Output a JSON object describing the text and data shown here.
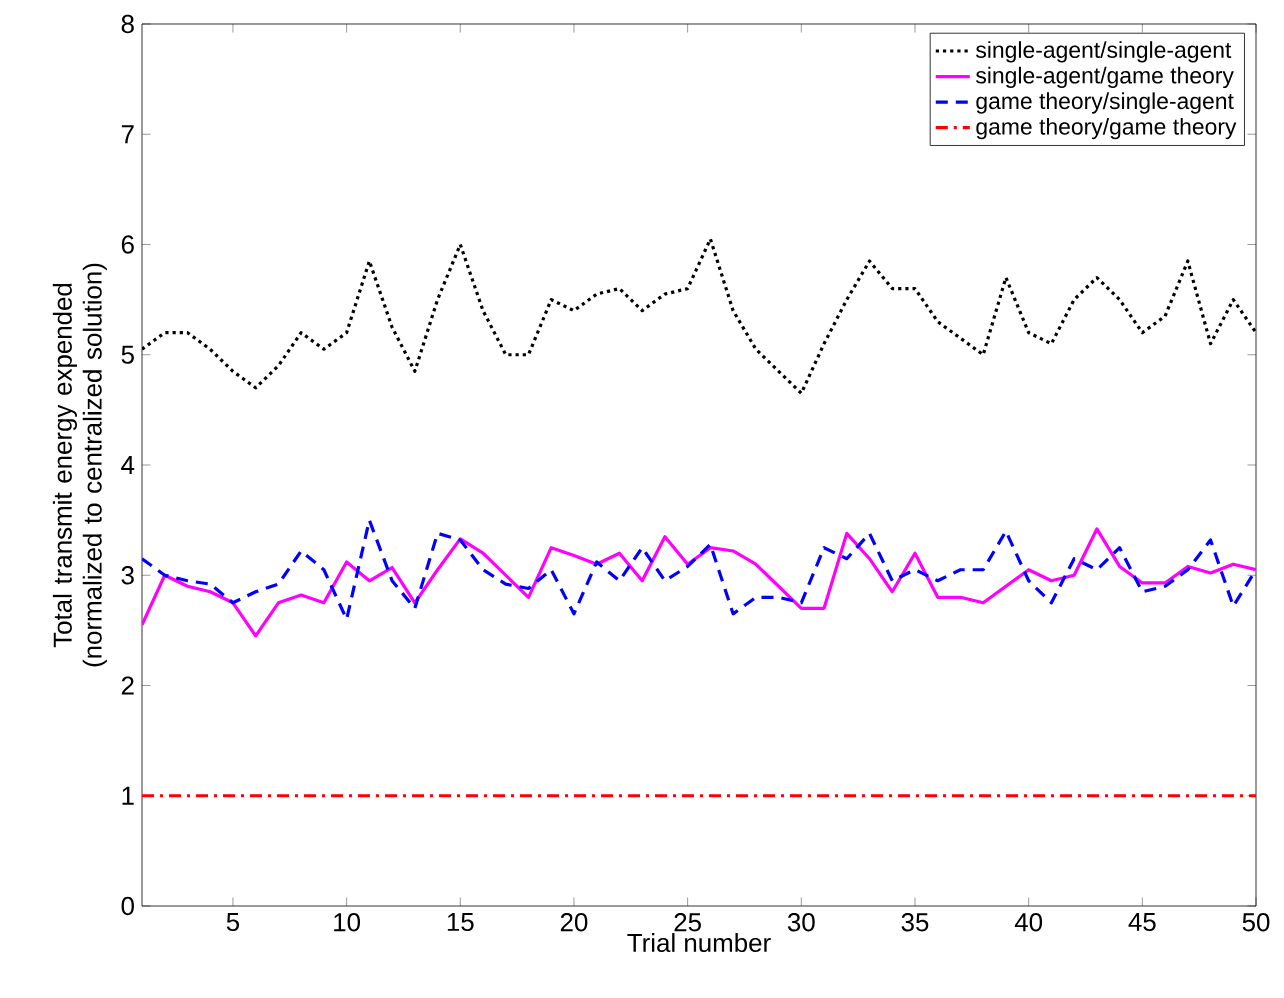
{
  "chart_data": {
    "type": "line",
    "xlabel": "Trial number",
    "ylabel": "Total transmit energy expended (normalized to centralized solution)",
    "xlim": [
      1,
      50
    ],
    "ylim": [
      0,
      8
    ],
    "xticks": [
      5,
      10,
      15,
      20,
      25,
      30,
      35,
      40,
      45,
      50
    ],
    "yticks": [
      0,
      1,
      2,
      3,
      4,
      5,
      6,
      7,
      8
    ],
    "grid": false,
    "legend": "top right",
    "marker": "none",
    "x": [
      1,
      2,
      3,
      4,
      5,
      6,
      7,
      8,
      9,
      10,
      11,
      12,
      13,
      14,
      15,
      16,
      17,
      18,
      19,
      20,
      21,
      22,
      23,
      24,
      25,
      26,
      27,
      28,
      29,
      30,
      31,
      32,
      33,
      34,
      35,
      36,
      37,
      38,
      39,
      40,
      41,
      42,
      43,
      44,
      45,
      46,
      47,
      48,
      49,
      50
    ],
    "series": [
      {
        "name": "single-agent/single-agent",
        "color": "#000000",
        "line_style": "dotted",
        "values": [
          5.05,
          5.2,
          5.2,
          5.05,
          4.85,
          4.7,
          4.9,
          5.2,
          5.05,
          5.2,
          5.85,
          5.25,
          4.85,
          5.5,
          6.0,
          5.4,
          5.0,
          5.0,
          5.5,
          5.4,
          5.55,
          5.6,
          5.4,
          5.55,
          5.6,
          6.05,
          5.4,
          5.05,
          4.85,
          4.65,
          5.1,
          5.5,
          5.85,
          5.6,
          5.6,
          5.3,
          5.15,
          5.0,
          5.7,
          5.2,
          5.1,
          5.5,
          5.7,
          5.5,
          5.2,
          5.35,
          5.85,
          5.1,
          5.5,
          5.2
        ]
      },
      {
        "name": "single-agent/game theory",
        "color": "#ff00ff",
        "line_style": "solid",
        "values": [
          2.55,
          3.0,
          2.9,
          2.85,
          2.75,
          2.45,
          2.75,
          2.82,
          2.75,
          3.12,
          2.95,
          3.07,
          2.75,
          3.05,
          3.33,
          3.2,
          3.0,
          2.8,
          3.25,
          3.18,
          3.1,
          3.2,
          2.95,
          3.35,
          3.1,
          3.25,
          3.22,
          3.1,
          2.9,
          2.7,
          2.7,
          3.38,
          3.15,
          2.85,
          3.2,
          2.8,
          2.8,
          2.75,
          2.9,
          3.05,
          2.95,
          3.0,
          3.42,
          3.08,
          2.93,
          2.93,
          3.08,
          3.02,
          3.1,
          3.05
        ]
      },
      {
        "name": "game theory/single-agent",
        "color": "#0000ff",
        "line_style": "dashed",
        "values": [
          3.15,
          3.0,
          2.95,
          2.92,
          2.75,
          2.85,
          2.92,
          3.22,
          3.05,
          2.6,
          3.5,
          2.95,
          2.7,
          3.38,
          3.32,
          3.05,
          2.92,
          2.88,
          3.05,
          2.65,
          3.12,
          2.95,
          3.25,
          2.95,
          3.08,
          3.28,
          2.65,
          2.8,
          2.8,
          2.75,
          3.25,
          3.15,
          3.38,
          2.95,
          3.05,
          2.95,
          3.05,
          3.05,
          3.4,
          2.95,
          2.75,
          3.15,
          3.05,
          3.25,
          2.85,
          2.9,
          3.05,
          3.32,
          2.72,
          3.05
        ]
      },
      {
        "name": "game theory/game theory",
        "color": "#ff0000",
        "line_style": "dashdot",
        "x": [
          1,
          50
        ],
        "values": [
          1,
          1
        ]
      }
    ]
  }
}
